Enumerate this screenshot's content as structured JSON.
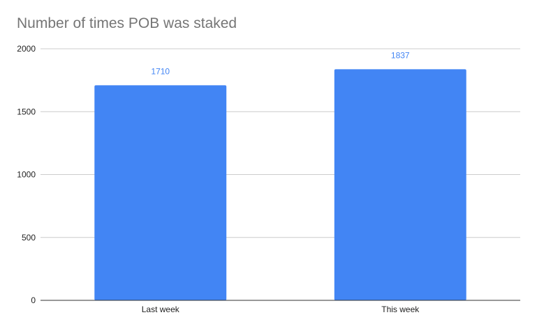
{
  "chart_data": {
    "type": "bar",
    "title": "Number of times POB was staked",
    "categories": [
      "Last week",
      "This week"
    ],
    "values": [
      1710,
      1837
    ],
    "data_labels": [
      "1710",
      "1837"
    ],
    "xlabel": "",
    "ylabel": "",
    "ylim": [
      0,
      2000
    ],
    "yticks": [
      0,
      500,
      1000,
      1500,
      2000
    ],
    "ytick_labels": [
      "0",
      "500",
      "1000",
      "1500",
      "2000"
    ],
    "grid": true,
    "legend": "none",
    "colors": {
      "bar": "#4285f4",
      "data_label": "#4285f4",
      "grid": "#cccccc",
      "axis": "#333333"
    }
  }
}
